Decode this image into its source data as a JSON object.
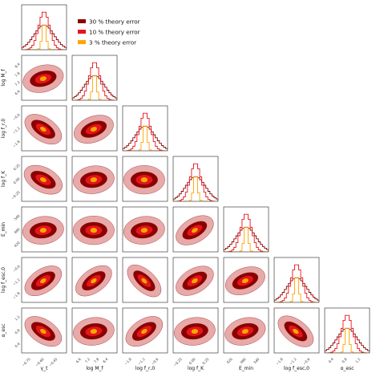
{
  "chart_data": {
    "type": "corner",
    "parameters": [
      {
        "label": "γ_t",
        "sym": "γ",
        "sub": "t",
        "ticks": [
          "−0.75",
          "−0.60",
          "−0.45"
        ],
        "range": [
          -0.82,
          -0.32
        ]
      },
      {
        "label": "log M_f",
        "sym": "log M",
        "sub": "f",
        "ticks": [
          "6.6",
          "7.2",
          "7.8",
          "8.4"
        ],
        "range": [
          6.4,
          8.8
        ]
      },
      {
        "label": "log f_r,0",
        "sym": "log f",
        "sub": "r,0",
        "ticks": [
          "−1.8",
          "−1.2",
          "−0.6"
        ],
        "range": [
          -2.0,
          -0.4
        ]
      },
      {
        "label": "log f_K",
        "sym": "log f",
        "sub": "K",
        "ticks": [
          "−0.25",
          "0.00",
          "0.25"
        ],
        "range": [
          -0.35,
          0.35
        ]
      },
      {
        "label": "E_min",
        "sym": "E",
        "sub": "min",
        "ticks": [
          "420",
          "480",
          "540"
        ],
        "range": [
          400,
          560
        ]
      },
      {
        "label": "log f_esc,0",
        "sym": "log f",
        "sub": "esc,0",
        "ticks": [
          "−1.8",
          "−1.2",
          "−0.6"
        ],
        "range": [
          -2.0,
          -0.4
        ]
      },
      {
        "label": "α_esc",
        "sym": "α",
        "sub": "esc",
        "ticks": [
          "0.4",
          "0.8",
          "1.2"
        ],
        "range": [
          0.2,
          1.4
        ]
      }
    ],
    "row_tick_labels": [
      [],
      [
        "6.6",
        "7.2",
        "7.8",
        "8.4"
      ],
      [
        "−1.8",
        "−1.2",
        "−0.6"
      ],
      [
        "−0.25",
        "0.00",
        "0.25"
      ],
      [
        "420",
        "480",
        "540"
      ],
      [
        "−1.8",
        "−1.2",
        "−0.6"
      ],
      [
        "0.4",
        "0.8",
        "1.2"
      ]
    ],
    "series": [
      {
        "name": "30 % theory error",
        "color": "#8b0000",
        "width_scale": 1.0
      },
      {
        "name": "10 % theory error",
        "color": "#e8141c",
        "width_scale": 0.55
      },
      {
        "name": "3 % theory error",
        "color": "#ffa500",
        "width_scale": 0.2
      }
    ],
    "contour_colors": {
      "outer": "#e8a9a9",
      "middle": "#8b0000",
      "inner": "#e8141c",
      "core": "#ffa500"
    },
    "correlations": [
      [
        0
      ],
      [
        0.2
      ],
      [
        -0.5,
        0.3
      ],
      [
        -0.4,
        0.1,
        0.0
      ],
      [
        0.1,
        0.0,
        0.1,
        0.45
      ],
      [
        0.5,
        0.55,
        -0.7,
        0.45,
        0.3
      ],
      [
        -0.5,
        0.1,
        0.5,
        0.1,
        0.2,
        -0.6
      ]
    ]
  }
}
